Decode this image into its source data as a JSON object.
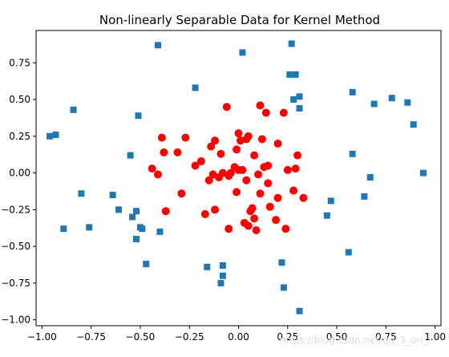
{
  "chart_data": {
    "type": "scatter",
    "title": "Non-linearly Separable Data for Kernel Method",
    "xlabel": "",
    "ylabel": "",
    "xlim": [
      -1.03,
      1.03
    ],
    "ylim": [
      -1.04,
      0.97
    ],
    "xticks": [
      -1.0,
      -0.75,
      -0.5,
      -0.25,
      0.0,
      0.25,
      0.5,
      0.75,
      1.0
    ],
    "xtick_labels": [
      "−1.00",
      "−0.75",
      "−0.50",
      "−0.25",
      "0.00",
      "0.25",
      "0.50",
      "0.75",
      "1.00"
    ],
    "yticks": [
      0.75,
      0.5,
      0.25,
      0.0,
      -0.25,
      -0.5,
      -0.75,
      -1.0
    ],
    "ytick_labels": [
      "0.75",
      "0.50",
      "0.25",
      "0.00",
      "−0.25",
      "−0.50",
      "−0.75",
      "−1.00"
    ],
    "grid": false,
    "series": [
      {
        "marker": "square",
        "color": "#1f77b4",
        "points": [
          [
            -0.96,
            0.25
          ],
          [
            -0.93,
            0.26
          ],
          [
            -0.89,
            -0.38
          ],
          [
            -0.84,
            0.43
          ],
          [
            -0.8,
            -0.14
          ],
          [
            -0.76,
            -0.37
          ],
          [
            -0.64,
            -0.15
          ],
          [
            -0.61,
            -0.25
          ],
          [
            -0.55,
            0.12
          ],
          [
            -0.54,
            -0.3
          ],
          [
            -0.52,
            -0.45
          ],
          [
            -0.52,
            -0.26
          ],
          [
            -0.51,
            0.39
          ],
          [
            -0.5,
            -0.37
          ],
          [
            -0.49,
            -0.38
          ],
          [
            -0.47,
            -0.62
          ],
          [
            -0.41,
            0.87
          ],
          [
            -0.4,
            -0.4
          ],
          [
            -0.22,
            0.58
          ],
          [
            -0.16,
            -0.64
          ],
          [
            -0.09,
            -0.75
          ],
          [
            -0.08,
            -0.7
          ],
          [
            -0.08,
            -0.63
          ],
          [
            0.02,
            0.82
          ],
          [
            0.22,
            -0.61
          ],
          [
            0.23,
            -0.78
          ],
          [
            0.26,
            0.67
          ],
          [
            0.27,
            0.88
          ],
          [
            0.28,
            0.5
          ],
          [
            0.29,
            0.67
          ],
          [
            0.31,
            0.52
          ],
          [
            0.31,
            0.44
          ],
          [
            0.31,
            -0.94
          ],
          [
            0.45,
            -0.29
          ],
          [
            0.47,
            -0.19
          ],
          [
            0.56,
            -0.54
          ],
          [
            0.58,
            0.55
          ],
          [
            0.58,
            0.13
          ],
          [
            0.64,
            -0.16
          ],
          [
            0.67,
            -0.03
          ],
          [
            0.69,
            0.47
          ],
          [
            0.78,
            0.51
          ],
          [
            0.86,
            0.48
          ],
          [
            0.89,
            0.33
          ],
          [
            0.94,
            0.0
          ]
        ]
      },
      {
        "marker": "circle",
        "color": "#ff0000",
        "points": [
          [
            -0.44,
            0.03
          ],
          [
            -0.41,
            -0.01
          ],
          [
            -0.39,
            0.24
          ],
          [
            -0.38,
            0.14
          ],
          [
            -0.37,
            -0.26
          ],
          [
            -0.31,
            0.14
          ],
          [
            -0.29,
            -0.14
          ],
          [
            -0.27,
            0.24
          ],
          [
            -0.22,
            0.05
          ],
          [
            -0.19,
            0.08
          ],
          [
            -0.17,
            -0.28
          ],
          [
            -0.15,
            -0.05
          ],
          [
            -0.14,
            0.18
          ],
          [
            -0.13,
            -0.01
          ],
          [
            -0.12,
            0.22
          ],
          [
            -0.12,
            -0.25
          ],
          [
            -0.1,
            -0.03
          ],
          [
            -0.09,
            0.13
          ],
          [
            -0.08,
            0.0
          ],
          [
            -0.06,
            0.45
          ],
          [
            -0.05,
            -0.38
          ],
          [
            -0.05,
            -0.02
          ],
          [
            -0.04,
            0.0
          ],
          [
            -0.02,
            0.04
          ],
          [
            -0.01,
            -0.13
          ],
          [
            -0.01,
            0.16
          ],
          [
            0.0,
            0.02
          ],
          [
            0.0,
            0.27
          ],
          [
            0.01,
            0.22
          ],
          [
            0.02,
            0.02
          ],
          [
            0.03,
            -0.34
          ],
          [
            0.04,
            -0.05
          ],
          [
            0.04,
            0.23
          ],
          [
            0.05,
            0.25
          ],
          [
            0.05,
            -0.36
          ],
          [
            0.06,
            -0.26
          ],
          [
            0.07,
            -0.24
          ],
          [
            0.08,
            0.12
          ],
          [
            0.08,
            -0.31
          ],
          [
            0.09,
            -0.39
          ],
          [
            0.1,
            -0.01
          ],
          [
            0.11,
            0.46
          ],
          [
            0.11,
            -0.14
          ],
          [
            0.12,
            0.23
          ],
          [
            0.13,
            0.04
          ],
          [
            0.14,
            0.41
          ],
          [
            0.15,
            -0.07
          ],
          [
            0.15,
            0.05
          ],
          [
            0.16,
            -0.23
          ],
          [
            0.19,
            -0.32
          ],
          [
            0.2,
            0.2
          ],
          [
            0.2,
            -0.17
          ],
          [
            0.23,
            0.41
          ],
          [
            0.24,
            -0.38
          ],
          [
            0.25,
            0.02
          ],
          [
            0.28,
            -0.12
          ],
          [
            0.29,
            0.03
          ],
          [
            0.3,
            0.12
          ],
          [
            0.33,
            -0.17
          ]
        ]
      }
    ]
  },
  "watermark": "https://blog.csdn.net/qq_3_ori_..."
}
